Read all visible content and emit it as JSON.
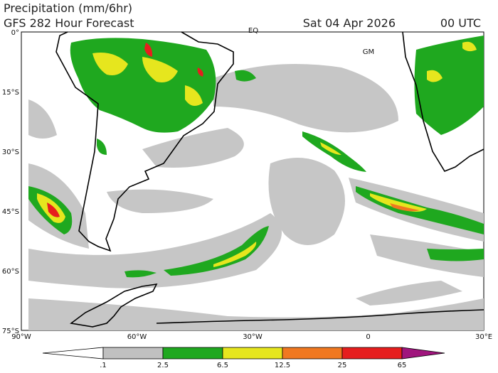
{
  "header": {
    "title": "Precipitation (mm/6hr)",
    "subtitle": "GFS 282 Hour Forecast",
    "date": "Sat 04 Apr 2026",
    "time": "00 UTC"
  },
  "map": {
    "lat_labels": [
      "0°",
      "15°S",
      "30°S",
      "45°S",
      "60°S",
      "75°S"
    ],
    "lon_labels": [
      "90°W",
      "60°W",
      "30°W",
      "0",
      "30°E"
    ],
    "place_labels": [
      "EQ",
      "GM"
    ]
  },
  "colorbar": {
    "labels": [
      ".1",
      "2.5",
      "6.5",
      "12.5",
      "25",
      "65"
    ],
    "colors": [
      "#ffffff",
      "#c0c0c0",
      "#1fa81f",
      "#e6e61e",
      "#f07820",
      "#e61e1e",
      "#a0157d"
    ]
  }
}
